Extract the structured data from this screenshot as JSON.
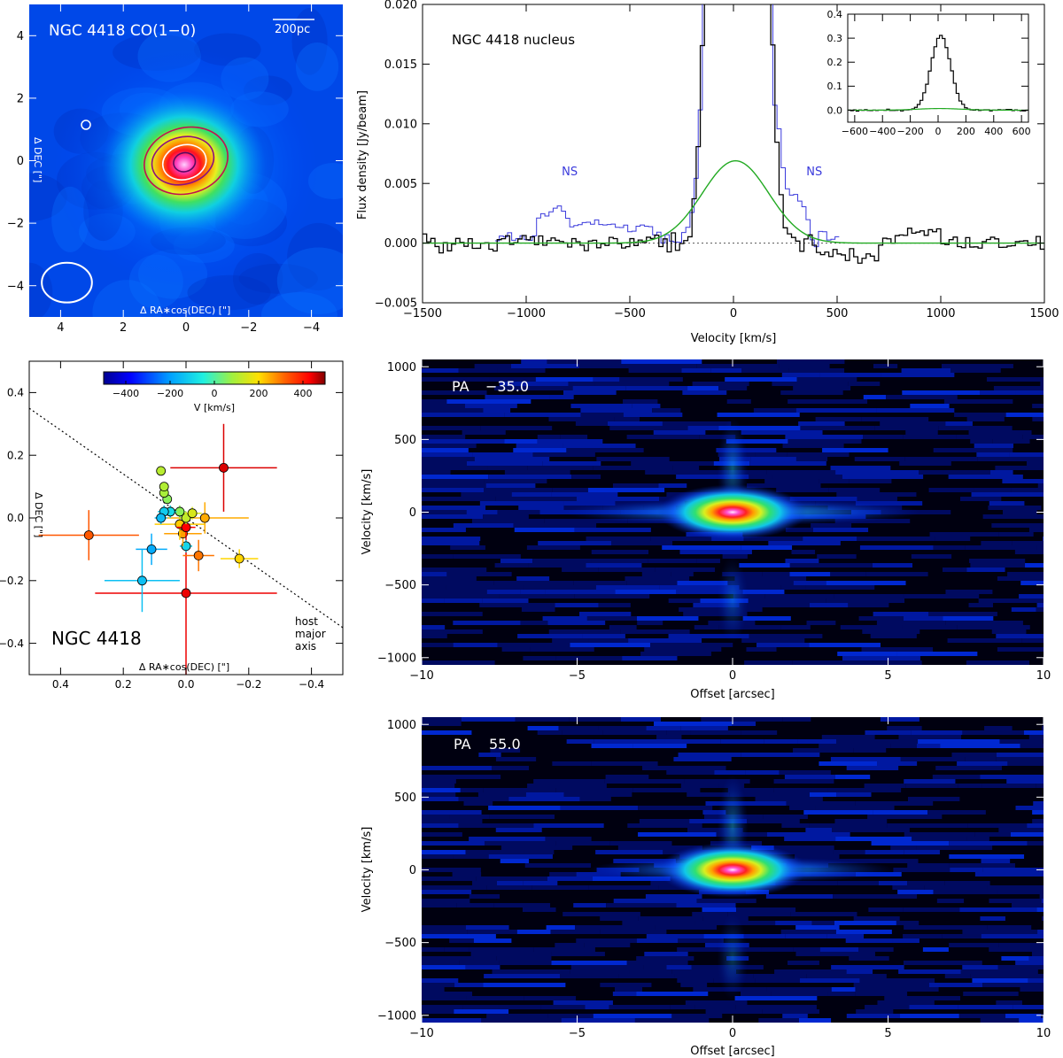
{
  "chart_data": [
    {
      "id": "moment0",
      "type": "heatmap",
      "title": "NGC 4418 CO(1−0)",
      "scalebar_label": "200pc",
      "xlabel": "Δ RA∗cos(DEC) [\"]",
      "ylabel": "Δ DEC [\"]",
      "xlim": [
        5,
        -5
      ],
      "ylim": [
        -5,
        5
      ],
      "xticks": [
        4,
        2,
        0,
        -2,
        -4
      ],
      "yticks": [
        -4,
        -2,
        0,
        2,
        4
      ],
      "xtick_labels": [
        "4",
        "2",
        "0",
        "−2",
        "−4"
      ],
      "ytick_labels": [
        "−4",
        "−2",
        "0",
        "2",
        "4"
      ],
      "source_center": [
        0,
        0
      ],
      "beam_center": [
        3.8,
        -3.9
      ],
      "beam_axes": [
        1.6,
        1.1
      ],
      "contours": [
        {
          "color": "#c01050",
          "rx": 1.35,
          "ry": 1.05,
          "cx": 0.0,
          "cy": 0.0
        },
        {
          "color": "#8a1080",
          "rx": 1.0,
          "ry": 0.75,
          "cx": 0.1,
          "cy": 0.0
        },
        {
          "color": "#ffffff",
          "rx": 0.7,
          "ry": 0.55,
          "cx": 0.05,
          "cy": -0.05
        },
        {
          "color": "#5a0a60",
          "rx": 0.35,
          "ry": 0.3,
          "cx": 0.05,
          "cy": -0.05
        }
      ]
    },
    {
      "id": "spectrum",
      "type": "line",
      "label": "NGC 4418 nucleus",
      "xlabel": "Velocity [km/s]",
      "ylabel": "Flux density [Jy/beam]",
      "xlim": [
        -1500,
        1500
      ],
      "ylim": [
        -0.005,
        0.02
      ],
      "xticks": [
        -1500,
        -1000,
        -500,
        0,
        500,
        1000,
        1500
      ],
      "yticks": [
        -0.005,
        0.0,
        0.005,
        0.01,
        0.015,
        0.02
      ],
      "xtick_labels": [
        "−1500",
        "−1000",
        "−500",
        "0",
        "500",
        "1000",
        "1500"
      ],
      "ytick_labels": [
        "−0.005",
        "0.000",
        "0.005",
        "0.010",
        "0.015",
        "0.020"
      ],
      "annotations": [
        {
          "text": "NS",
          "x": -790,
          "y": 0.0057,
          "color": "#3a3adc"
        },
        {
          "text": "NS",
          "x": 390,
          "y": 0.0057,
          "color": "#3a3adc"
        }
      ],
      "series": [
        {
          "name": "data",
          "color": "#000000",
          "kind": "step",
          "x_start": -1500,
          "x_end": 1500,
          "step": 20
        },
        {
          "name": "NS spectrum",
          "color": "#3a3adc",
          "kind": "step",
          "x_start": -1150,
          "x_end": 500,
          "step": 20
        },
        {
          "name": "broad gaussian fit",
          "color": "#22aa22",
          "kind": "gauss",
          "amp": 0.0069,
          "center": 10,
          "sigma": 160
        },
        {
          "name": "core gaussian",
          "color": "#000000",
          "kind": "gauss",
          "amp": 0.31,
          "center": 20,
          "sigma": 70
        }
      ],
      "inset": {
        "xlim": [
          -650,
          650
        ],
        "ylim": [
          -0.05,
          0.4
        ],
        "xticks": [
          -600,
          -400,
          -200,
          0,
          200,
          400,
          600
        ],
        "xtick_labels": [
          "−600",
          "−400",
          "−200",
          "0",
          "200",
          "400",
          "600"
        ],
        "yticks": [
          0.0,
          0.1,
          0.2,
          0.3,
          0.4
        ],
        "ytick_labels": [
          "0.0",
          "0.1",
          "0.2",
          "0.3",
          "0.4"
        ]
      }
    },
    {
      "id": "offsets",
      "type": "scatter",
      "label": "NGC 4418",
      "xlabel": "Δ RA∗cos(DEC) [\"]",
      "ylabel": "Δ DEC [\"]",
      "xlim": [
        0.5,
        -0.5
      ],
      "ylim": [
        -0.5,
        0.5
      ],
      "xticks": [
        0.4,
        0.2,
        0.0,
        -0.2,
        -0.4
      ],
      "yticks": [
        -0.4,
        -0.2,
        0.0,
        0.2,
        0.4
      ],
      "xtick_labels": [
        "0.4",
        "0.2",
        "0.0",
        "−0.2",
        "−0.4"
      ],
      "ytick_labels": [
        "−0.4",
        "−0.2",
        "0.0",
        "0.2",
        "0.4"
      ],
      "major_axis_label": [
        "host",
        "major",
        "axis"
      ],
      "major_axis_line": [
        [
          0.5,
          0.35
        ],
        [
          -0.5,
          -0.35
        ]
      ],
      "colorbar": {
        "label": "V [km/s]",
        "range": [
          -500,
          500
        ],
        "ticks": [
          -400,
          -200,
          0,
          200,
          400
        ],
        "tick_labels": [
          "−400",
          "−200",
          "0",
          "200",
          "400"
        ]
      },
      "points": [
        {
          "x": -0.12,
          "y": 0.16,
          "xerr": 0.17,
          "yerr": 0.14,
          "v": 450
        },
        {
          "x": 0.31,
          "y": -0.055,
          "xerr": 0.16,
          "yerr": 0.08,
          "v": 330
        },
        {
          "x": -0.17,
          "y": -0.13,
          "xerr": 0.06,
          "yerr": 0.03,
          "v": 210
        },
        {
          "x": 0.0,
          "y": -0.24,
          "xerr": 0.29,
          "yerr": 0.26,
          "v": 440
        },
        {
          "x": 0.14,
          "y": -0.2,
          "xerr": 0.12,
          "yerr": 0.1,
          "v": -140
        },
        {
          "x": 0.11,
          "y": -0.1,
          "xerr": 0.05,
          "yerr": 0.05,
          "v": -180
        },
        {
          "x": -0.04,
          "y": -0.12,
          "xerr": 0.05,
          "yerr": 0.05,
          "v": 300
        },
        {
          "x": -0.06,
          "y": 0.0,
          "xerr": 0.14,
          "yerr": 0.05,
          "v": 250
        },
        {
          "x": 0.0,
          "y": -0.09,
          "xerr": 0.02,
          "yerr": 0.02,
          "v": -100
        },
        {
          "x": 0.01,
          "y": -0.05,
          "xerr": 0.06,
          "yerr": 0.04,
          "v": 260
        },
        {
          "x": 0.02,
          "y": -0.02,
          "xerr": 0.08,
          "yerr": 0.05,
          "v": 220
        },
        {
          "x": 0.0,
          "y": -0.03,
          "xerr": 0.03,
          "yerr": 0.03,
          "v": 430
        },
        {
          "x": 0.0,
          "y": 0.0,
          "xerr": 0.02,
          "yerr": 0.02,
          "v": 120
        },
        {
          "x": -0.02,
          "y": 0.015,
          "xerr": 0.03,
          "yerr": 0.02,
          "v": 150
        },
        {
          "x": 0.02,
          "y": 0.02,
          "xerr": 0.02,
          "yerr": 0.02,
          "v": 60
        },
        {
          "x": 0.05,
          "y": 0.02,
          "xerr": 0.02,
          "yerr": 0.02,
          "v": -90
        },
        {
          "x": 0.07,
          "y": 0.02,
          "xerr": 0.02,
          "yerr": 0.02,
          "v": -120
        },
        {
          "x": 0.08,
          "y": 0.0,
          "xerr": 0.02,
          "yerr": 0.02,
          "v": -150
        },
        {
          "x": 0.06,
          "y": 0.06,
          "xerr": 0.01,
          "yerr": 0.01,
          "v": 60
        },
        {
          "x": 0.07,
          "y": 0.08,
          "xerr": 0.01,
          "yerr": 0.01,
          "v": 90
        },
        {
          "x": 0.07,
          "y": 0.1,
          "xerr": 0.01,
          "yerr": 0.01,
          "v": 100
        },
        {
          "x": 0.08,
          "y": 0.15,
          "xerr": 0.01,
          "yerr": 0.01,
          "v": 110
        }
      ]
    },
    {
      "id": "pv1",
      "type": "heatmap",
      "pa_label": "PA",
      "pa_value": "−35.0",
      "xlabel": "Offset [arcsec]",
      "ylabel": "Velocity [km/s]",
      "xlim": [
        -10,
        10
      ],
      "ylim": [
        -1050,
        1050
      ],
      "xticks": [
        -10,
        -5,
        0,
        5,
        10
      ],
      "yticks": [
        -1000,
        -500,
        0,
        500,
        1000
      ],
      "xtick_labels": [
        "−10",
        "−5",
        "0",
        "5",
        "10"
      ],
      "ytick_labels": [
        "−1000",
        "−500",
        "0",
        "500",
        "1000"
      ]
    },
    {
      "id": "pv2",
      "type": "heatmap",
      "pa_label": "PA",
      "pa_value": "55.0",
      "xlabel": "Offset [arcsec]",
      "ylabel": "Velocity [km/s]",
      "xlim": [
        -10,
        10
      ],
      "ylim": [
        -1050,
        1050
      ],
      "xticks": [
        -10,
        -5,
        0,
        5,
        10
      ],
      "yticks": [
        -1000,
        -500,
        0,
        500,
        1000
      ],
      "xtick_labels": [
        "−10",
        "−5",
        "0",
        "5",
        "10"
      ],
      "ytick_labels": [
        "−1000",
        "−500",
        "0",
        "500",
        "1000"
      ]
    }
  ]
}
